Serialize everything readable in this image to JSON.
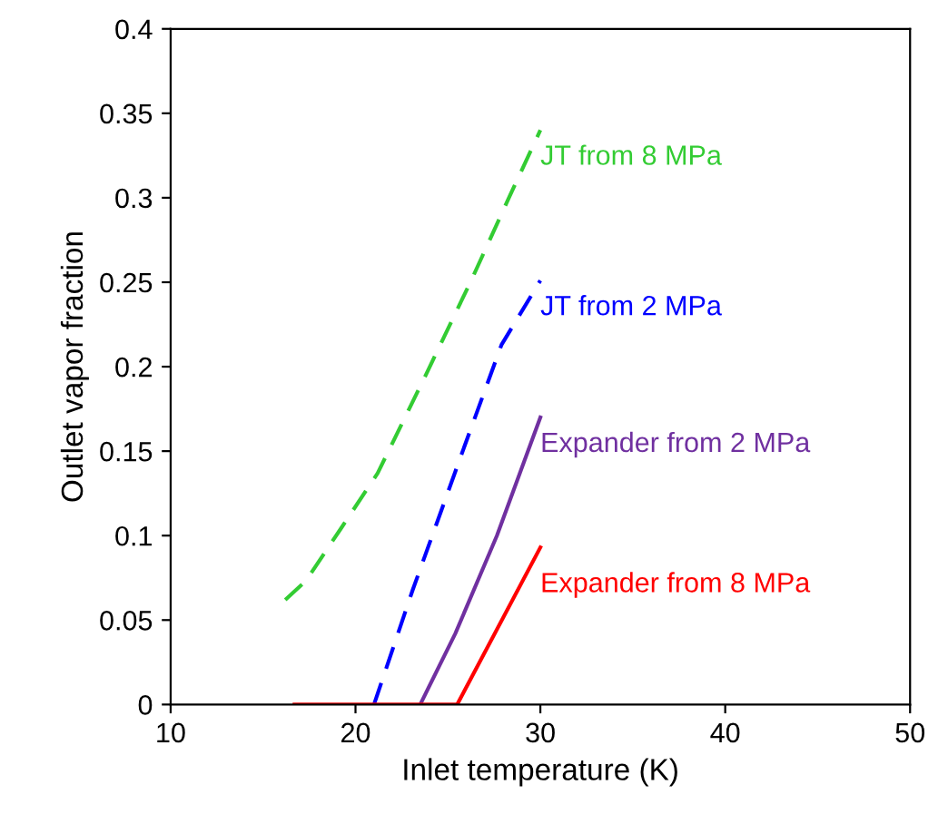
{
  "chart_data": {
    "type": "line",
    "xlabel": "Inlet temperature (K)",
    "ylabel": "Outlet vapor fraction",
    "xlim": [
      10,
      50
    ],
    "xticks": [
      10,
      20,
      30,
      40,
      50
    ],
    "ylim": [
      0,
      0.4
    ],
    "yticks": [
      0,
      0.05,
      0.1,
      0.15,
      0.2,
      0.25,
      0.3,
      0.35,
      0.4
    ],
    "grid": false,
    "legend": false,
    "series": [
      {
        "name": "JT from 8 MPa",
        "color": "#33cc33",
        "line_style": "dashed",
        "x": [
          16.2,
          17.3,
          19.2,
          21.2,
          23.8,
          26.3,
          28.3,
          30.0
        ],
        "values": [
          0.062,
          0.073,
          0.104,
          0.137,
          0.195,
          0.252,
          0.3,
          0.34
        ]
      },
      {
        "name": "JT from 2 MPa",
        "color": "#0000ff",
        "line_style": "dashed",
        "x": [
          21.0,
          23.1,
          25.7,
          27.9,
          30.0
        ],
        "values": [
          0,
          0.068,
          0.147,
          0.213,
          0.251
        ]
      },
      {
        "name": "Expander from 2 MPa",
        "color": "#7030a0",
        "line_style": "solid",
        "x": [
          23.5,
          25.4,
          27.65,
          30.0
        ],
        "values": [
          0,
          0.042,
          0.1,
          0.17
        ]
      },
      {
        "name": "Expander from 8 MPa",
        "color": "#ff0000",
        "line_style": "solid",
        "x": [
          16.7,
          25.5,
          30.0
        ],
        "values": [
          0,
          0,
          0.093
        ]
      }
    ]
  }
}
